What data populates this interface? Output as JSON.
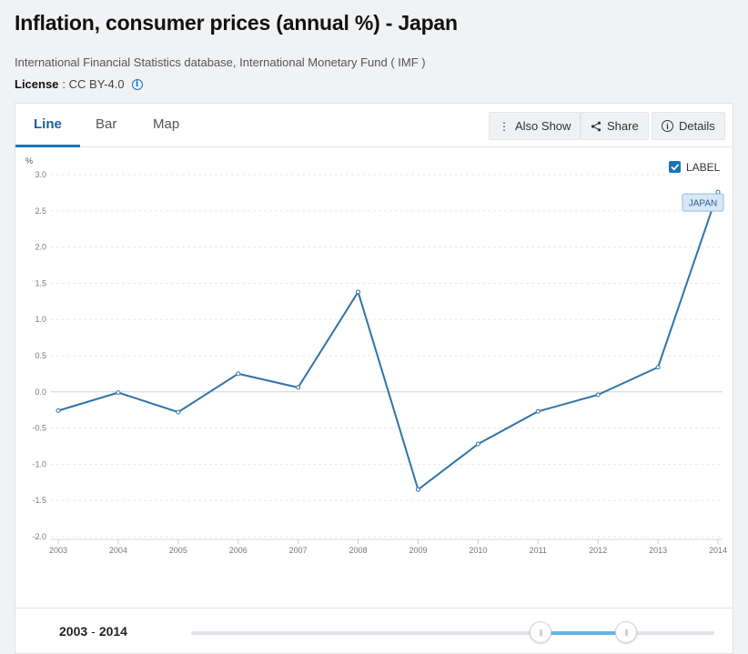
{
  "header": {
    "title": "Inflation, consumer prices (annual %) - Japan",
    "source": "International Financial Statistics database, International Monetary Fund ( IMF )",
    "license_label": "License",
    "license_value": ": CC BY-4.0"
  },
  "tabs": [
    {
      "label": "Line",
      "active": true
    },
    {
      "label": "Bar",
      "active": false
    },
    {
      "label": "Map",
      "active": false
    }
  ],
  "toolbar": {
    "also_show": "Also Show",
    "share": "Share",
    "details": "Details"
  },
  "label_toggle": {
    "label": "LABEL",
    "checked": true
  },
  "chart_data": {
    "type": "line",
    "ylabel": "%",
    "ylim": [
      -2.0,
      3.0
    ],
    "yticks": [
      "3.0",
      "2.5",
      "2.0",
      "1.5",
      "1.0",
      "0.5",
      "0.0",
      "-0.5",
      "-1.0",
      "-1.5",
      "-2.0"
    ],
    "x": [
      "2003",
      "2004",
      "2005",
      "2006",
      "2007",
      "2008",
      "2009",
      "2010",
      "2011",
      "2012",
      "2013",
      "2014"
    ],
    "series": [
      {
        "name": "JAPAN",
        "values": [
          -0.26,
          -0.01,
          -0.28,
          0.25,
          0.06,
          1.38,
          -1.35,
          -0.72,
          -0.27,
          -0.04,
          0.34,
          2.76
        ]
      }
    ],
    "grid": true,
    "color": "#2e73a8"
  },
  "range": {
    "start": "2003",
    "sep": "-",
    "end": "2014"
  }
}
